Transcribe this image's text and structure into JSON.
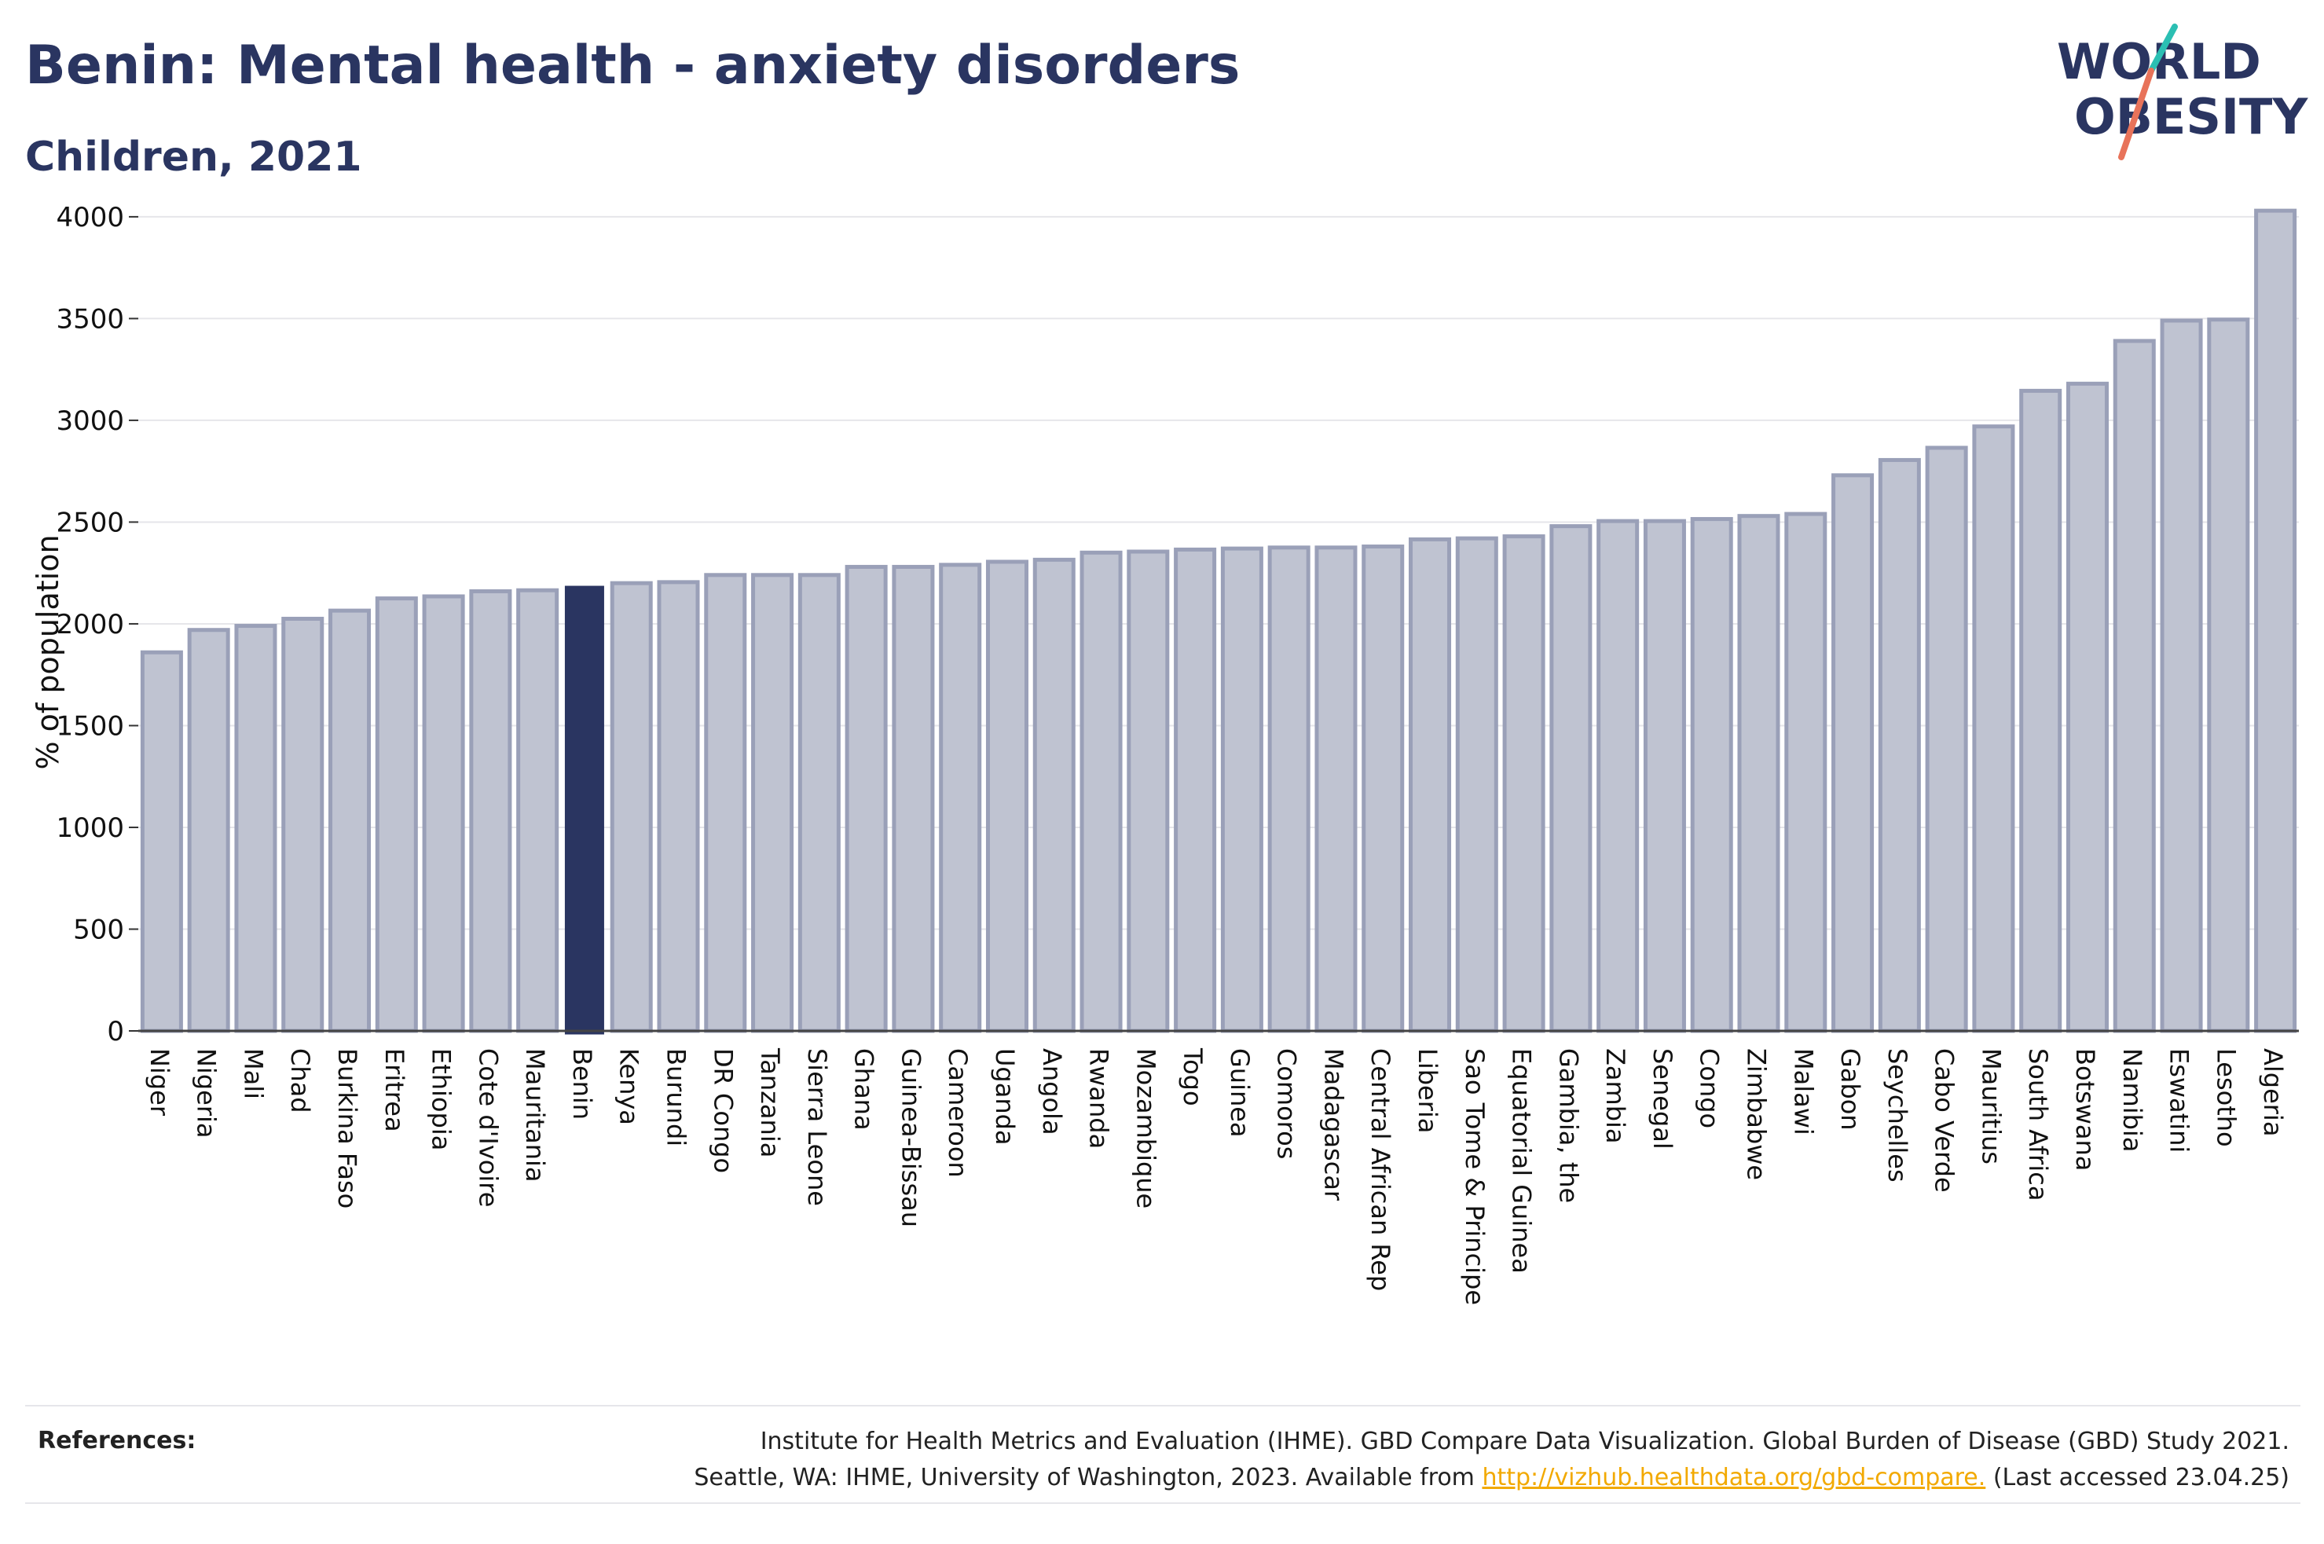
{
  "header": {
    "title": "Benin: Mental health - anxiety disorders",
    "subtitle": "Children, 2021"
  },
  "logo": {
    "line1": "WORLD",
    "line2": "OBESITY",
    "accent_teal": "#2bbfb3",
    "accent_coral": "#e8735a"
  },
  "colors": {
    "bar": "#bfc3d1",
    "bar_stroke": "#9aa0b8",
    "highlight": "#2a3561",
    "grid": "#e6e6ea",
    "text": "#2a3561"
  },
  "chart_data": {
    "type": "bar",
    "title": "Benin: Mental health - anxiety disorders",
    "subtitle": "Children, 2021",
    "ylabel": "% of population",
    "xlabel": "",
    "ylim": [
      0,
      4100
    ],
    "yticks": [
      0,
      500,
      1000,
      1500,
      2000,
      2500,
      3000,
      3500,
      4000
    ],
    "grid": true,
    "highlight": "Benin",
    "categories": [
      "Niger",
      "Nigeria",
      "Mali",
      "Chad",
      "Burkina Faso",
      "Eritrea",
      "Ethiopia",
      "Cote d'Ivoire",
      "Mauritania",
      "Benin",
      "Kenya",
      "Burundi",
      "DR Congo",
      "Tanzania",
      "Sierra Leone",
      "Ghana",
      "Guinea-Bissau",
      "Cameroon",
      "Uganda",
      "Angola",
      "Rwanda",
      "Mozambique",
      "Togo",
      "Guinea",
      "Comoros",
      "Madagascar",
      "Central African Rep",
      "Liberia",
      "Sao Tome & Principe",
      "Equatorial Guinea",
      "Gambia, the",
      "Zambia",
      "Senegal",
      "Congo",
      "Zimbabwe",
      "Malawi",
      "Gabon",
      "Seychelles",
      "Cabo Verde",
      "Mauritius",
      "South Africa",
      "Botswana",
      "Namibia",
      "Eswatini",
      "Lesotho",
      "Algeria"
    ],
    "values": [
      1860,
      1970,
      1990,
      2025,
      2065,
      2125,
      2135,
      2160,
      2165,
      2185,
      2200,
      2205,
      2240,
      2240,
      2240,
      2280,
      2280,
      2290,
      2305,
      2315,
      2350,
      2355,
      2365,
      2370,
      2375,
      2375,
      2380,
      2415,
      2420,
      2430,
      2480,
      2505,
      2505,
      2515,
      2530,
      2540,
      2730,
      2805,
      2865,
      2970,
      3145,
      3180,
      3390,
      3490,
      3495,
      4030
    ]
  },
  "references": {
    "label": "References:",
    "line1": "Institute for Health Metrics and Evaluation (IHME). GBD Compare Data Visualization. Global Burden of Disease (GBD) Study 2021.",
    "line2_before": "Seattle, WA: IHME, University of Washington, 2023. Available from ",
    "link": "http://vizhub.healthdata.org/gbd-compare.",
    "line2_after": " (Last accessed 23.04.25)"
  }
}
